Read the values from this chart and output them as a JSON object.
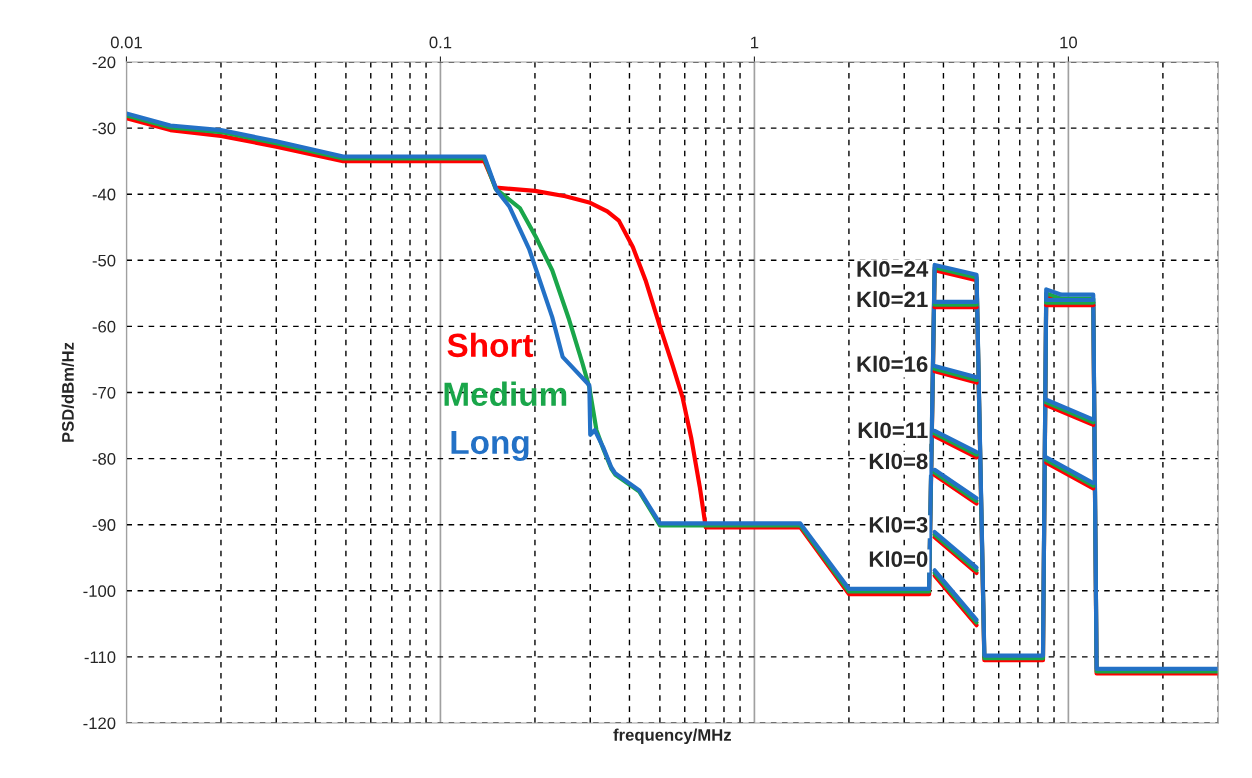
{
  "chart_data": {
    "type": "line",
    "xlabel": "frequency/MHz",
    "ylabel": "PSD/dBm/Hz",
    "log": "x",
    "grid": true,
    "legend": false,
    "line_style": "solid",
    "marker": "none",
    "xlim": [
      0.01,
      30
    ],
    "xticks": [
      0.01,
      0.1,
      1,
      10
    ],
    "ylim": [
      -120,
      -20
    ],
    "yticks": [
      -120,
      -110,
      -100,
      -90,
      -80,
      -70,
      -60,
      -50,
      -40,
      -30,
      -20
    ],
    "series": [
      {
        "name": "Short",
        "color": "#ff0000",
        "x": [
          0.01,
          0.0138,
          0.02,
          0.03,
          0.049,
          0.138,
          0.15,
          0.2,
          0.25,
          0.3,
          0.34,
          0.37,
          0.41,
          0.45,
          0.5,
          0.55,
          0.59,
          0.63,
          0.67,
          0.7,
          1.4,
          2.0,
          3.6,
          3.75,
          5.1,
          5.4,
          8.3,
          8.5,
          9.5,
          12,
          12.3,
          30
        ],
        "values": [
          -28.5,
          -30.3,
          -31.2,
          -32.8,
          -35,
          -35,
          -39,
          -39.5,
          -40.3,
          -41.3,
          -42.6,
          -44,
          -48,
          -53,
          -60,
          -66,
          -70.7,
          -77,
          -84.3,
          -90.4,
          -90.4,
          -100.5,
          -100.5,
          -51.5,
          -53,
          -110.5,
          -110.5,
          -55.5,
          -56.3,
          -56.3,
          -112.5,
          -112.5
        ]
      },
      {
        "name": "Medium",
        "color": "#1aa64a",
        "x": [
          0.01,
          0.0138,
          0.02,
          0.03,
          0.049,
          0.138,
          0.15,
          0.179,
          0.201,
          0.227,
          0.257,
          0.283,
          0.298,
          0.314,
          0.33,
          0.35,
          0.36,
          0.43,
          0.5,
          1.4,
          2.0,
          3.6,
          3.75,
          5.1,
          5.4,
          8.3,
          8.5,
          9.5,
          12,
          12.3,
          30
        ],
        "values": [
          -28.1,
          -29.9,
          -30.6,
          -32.3,
          -34.6,
          -34.6,
          -39.2,
          -42.1,
          -46.4,
          -51.5,
          -59,
          -65.5,
          -69.2,
          -75.7,
          -78.5,
          -81.5,
          -82.4,
          -85,
          -90.1,
          -90.1,
          -100.1,
          -100.1,
          -51.1,
          -52.6,
          -110.2,
          -110.2,
          -55,
          -55.8,
          -55.8,
          -112.2,
          -112.2
        ]
      },
      {
        "name": "Long",
        "color": "#2371c6",
        "x": [
          0.01,
          0.0138,
          0.02,
          0.03,
          0.049,
          0.138,
          0.151,
          0.166,
          0.192,
          0.227,
          0.245,
          0.298,
          0.3,
          0.31,
          0.33,
          0.35,
          0.36,
          0.43,
          0.5,
          1.4,
          2.0,
          3.6,
          3.75,
          5.1,
          5.4,
          8.3,
          8.5,
          9.5,
          12,
          12.3,
          30
        ],
        "values": [
          -27.8,
          -29.6,
          -30.3,
          -32,
          -34.3,
          -34.3,
          -39.4,
          -41.9,
          -48.4,
          -58.6,
          -64.6,
          -68.9,
          -76.4,
          -75.7,
          -78.3,
          -81.3,
          -82.2,
          -84.8,
          -89.8,
          -89.8,
          -99.7,
          -99.7,
          -50.7,
          -52.2,
          -109.8,
          -109.8,
          -54.4,
          -55.2,
          -55.2,
          -111.8,
          -111.8
        ]
      },
      {
        "color": "#ff0000",
        "x": [
          3.75,
          5.1,
          6.5,
          8.5,
          12
        ],
        "values": [
          -57.1,
          -57.1,
          null,
          -56.8,
          -56.8
        ]
      },
      {
        "color": "#ff0000",
        "x": [
          3.75,
          5.1,
          6.5,
          8.5,
          12
        ],
        "values": [
          -66.8,
          -68.5,
          null,
          -71.9,
          -74.9
        ]
      },
      {
        "color": "#ff0000",
        "x": [
          3.75,
          5.1,
          6.5,
          8.5,
          12
        ],
        "values": [
          -76.6,
          -79.8,
          null,
          -80.6,
          -84.5
        ]
      },
      {
        "color": "#ff0000",
        "x": [
          3.75,
          5.1
        ],
        "values": [
          -82.5,
          -86.8
        ]
      },
      {
        "color": "#ff0000",
        "x": [
          3.75,
          5.1
        ],
        "values": [
          -91.9,
          -97.3
        ]
      },
      {
        "color": "#ff0000",
        "x": [
          3.75,
          5.1
        ],
        "values": [
          -97.7,
          -105.2
        ]
      },
      {
        "color": "#1aa64a",
        "x": [
          3.75,
          5.1,
          6.5,
          8.5,
          12
        ],
        "values": [
          -56.7,
          -56.7,
          null,
          -56.4,
          -56.4
        ]
      },
      {
        "color": "#1aa64a",
        "x": [
          3.75,
          5.1,
          6.5,
          8.5,
          12
        ],
        "values": [
          -66.4,
          -68.1,
          null,
          -71.5,
          -74.5
        ]
      },
      {
        "color": "#1aa64a",
        "x": [
          3.75,
          5.1,
          6.5,
          8.5,
          12
        ],
        "values": [
          -76.2,
          -79.4,
          null,
          -80.2,
          -84.1
        ]
      },
      {
        "color": "#1aa64a",
        "x": [
          3.75,
          5.1
        ],
        "values": [
          -82.1,
          -86.4
        ]
      },
      {
        "color": "#1aa64a",
        "x": [
          3.75,
          5.1
        ],
        "values": [
          -91.5,
          -96.9
        ]
      },
      {
        "color": "#1aa64a",
        "x": [
          3.75,
          5.1
        ],
        "values": [
          -97.3,
          -104.8
        ]
      },
      {
        "color": "#2371c6",
        "x": [
          3.75,
          5.1,
          6.5,
          8.5,
          12
        ],
        "values": [
          -56.3,
          -56.3,
          null,
          -56.0,
          -56.0
        ]
      },
      {
        "color": "#2371c6",
        "x": [
          3.75,
          5.1,
          6.5,
          8.5,
          12
        ],
        "values": [
          -66.0,
          -67.7,
          null,
          -71.1,
          -74.1
        ]
      },
      {
        "color": "#2371c6",
        "x": [
          3.75,
          5.1,
          6.5,
          8.5,
          12
        ],
        "values": [
          -75.8,
          -79.0,
          null,
          -79.8,
          -83.7
        ]
      },
      {
        "color": "#2371c6",
        "x": [
          3.75,
          5.1
        ],
        "values": [
          -81.7,
          -86.0
        ]
      },
      {
        "color": "#2371c6",
        "x": [
          3.75,
          5.1
        ],
        "values": [
          -91.1,
          -96.5
        ]
      },
      {
        "color": "#2371c6",
        "x": [
          3.75,
          5.1
        ],
        "values": [
          -96.9,
          -104.4
        ]
      }
    ],
    "annotations": [
      "Kl0=24",
      "Kl0=21",
      "Kl0=16",
      "Kl0=11",
      "Kl0=8",
      "Kl0=3",
      "Kl0=0"
    ]
  }
}
